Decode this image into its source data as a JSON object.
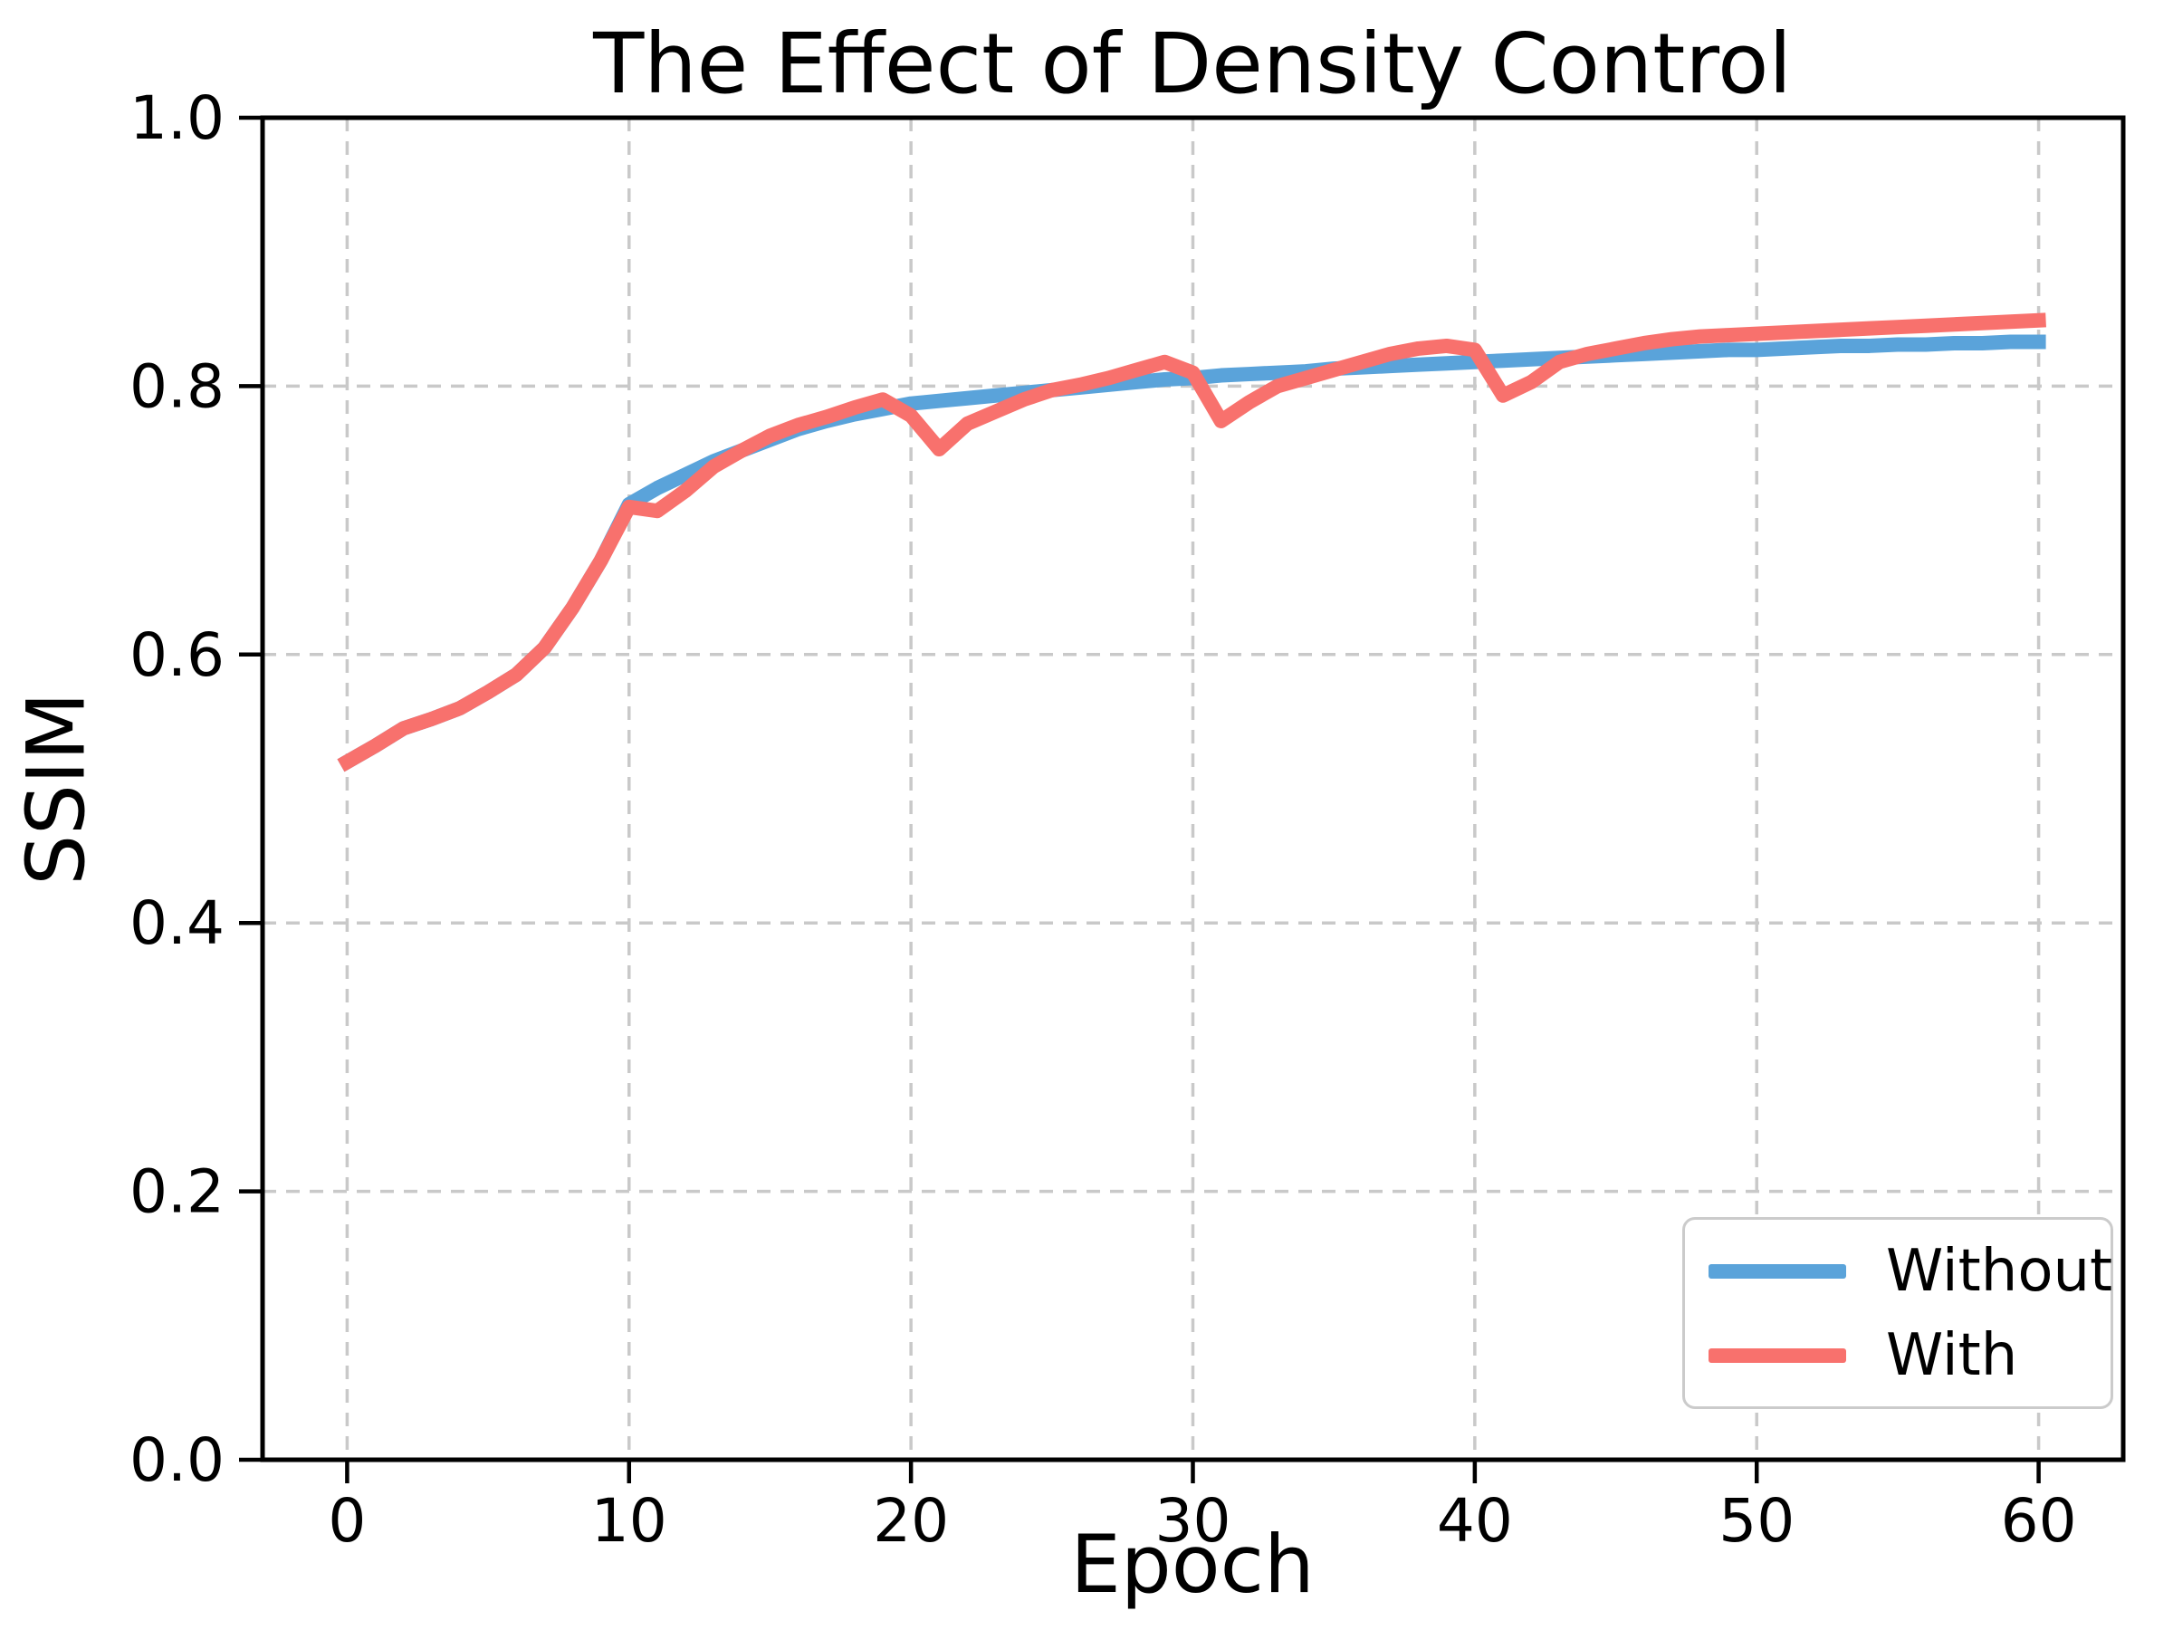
{
  "figure": {
    "title": "The Effect of Density Control",
    "xlabel": "Epoch",
    "ylabel": "SSIM",
    "background": "#ffffff"
  },
  "style": {
    "grid_color": "#c9c9c9",
    "spine_color": "#000000",
    "tick_color": "#000000",
    "text_color": "#000000",
    "line_width": 16
  },
  "chart_data": {
    "type": "line",
    "title": "The Effect of Density Control",
    "xlabel": "Epoch",
    "ylabel": "SSIM",
    "xlim": [
      0,
      60
    ],
    "ylim": [
      0,
      1
    ],
    "x_margin": 0.05,
    "grid": true,
    "grid_style": "dashed",
    "legend_position": "lower right",
    "xticks": [
      0,
      10,
      20,
      30,
      40,
      50,
      60
    ],
    "xtick_labels": [
      "0",
      "10",
      "20",
      "30",
      "40",
      "50",
      "60"
    ],
    "yticks": [
      0.0,
      0.2,
      0.4,
      0.6,
      0.8,
      1.0
    ],
    "ytick_labels": [
      "0.0",
      "0.2",
      "0.4",
      "0.6",
      "0.8",
      "1.0"
    ],
    "x": [
      0,
      1,
      2,
      3,
      4,
      5,
      6,
      7,
      8,
      9,
      10,
      11,
      12,
      13,
      14,
      15,
      16,
      17,
      18,
      19,
      20,
      21,
      22,
      23,
      24,
      25,
      26,
      27,
      28,
      29,
      30,
      31,
      32,
      33,
      34,
      35,
      36,
      37,
      38,
      39,
      40,
      41,
      42,
      43,
      44,
      45,
      46,
      47,
      48,
      49,
      50,
      51,
      52,
      53,
      54,
      55,
      56,
      57,
      58,
      59,
      60
    ],
    "series": [
      {
        "name": "Without",
        "color": "#5aa3da",
        "values": [
          0.52,
          0.532,
          0.545,
          0.552,
          0.56,
          0.572,
          0.585,
          0.605,
          0.635,
          0.67,
          0.712,
          0.724,
          0.734,
          0.744,
          0.752,
          0.76,
          0.768,
          0.774,
          0.779,
          0.783,
          0.787,
          0.789,
          0.791,
          0.793,
          0.795,
          0.797,
          0.799,
          0.801,
          0.803,
          0.805,
          0.806,
          0.808,
          0.809,
          0.81,
          0.811,
          0.813,
          0.814,
          0.815,
          0.816,
          0.817,
          0.818,
          0.819,
          0.82,
          0.821,
          0.822,
          0.823,
          0.824,
          0.825,
          0.826,
          0.827,
          0.827,
          0.828,
          0.829,
          0.83,
          0.83,
          0.831,
          0.831,
          0.832,
          0.832,
          0.833,
          0.833
        ]
      },
      {
        "name": "With",
        "color": "#f8716d",
        "values": [
          0.52,
          0.532,
          0.545,
          0.552,
          0.56,
          0.572,
          0.585,
          0.605,
          0.635,
          0.67,
          0.71,
          0.707,
          0.722,
          0.74,
          0.752,
          0.763,
          0.771,
          0.777,
          0.784,
          0.79,
          0.778,
          0.753,
          0.772,
          0.781,
          0.79,
          0.797,
          0.801,
          0.806,
          0.812,
          0.818,
          0.81,
          0.774,
          0.788,
          0.8,
          0.806,
          0.812,
          0.818,
          0.824,
          0.828,
          0.83,
          0.827,
          0.793,
          0.803,
          0.818,
          0.824,
          0.828,
          0.832,
          0.835,
          0.837,
          0.838,
          0.839,
          0.84,
          0.841,
          0.842,
          0.843,
          0.844,
          0.845,
          0.846,
          0.847,
          0.848,
          0.849
        ]
      }
    ]
  },
  "legend": {
    "entries": [
      {
        "label": "Without",
        "color": "#5aa3da"
      },
      {
        "label": "With",
        "color": "#f8716d"
      }
    ]
  }
}
